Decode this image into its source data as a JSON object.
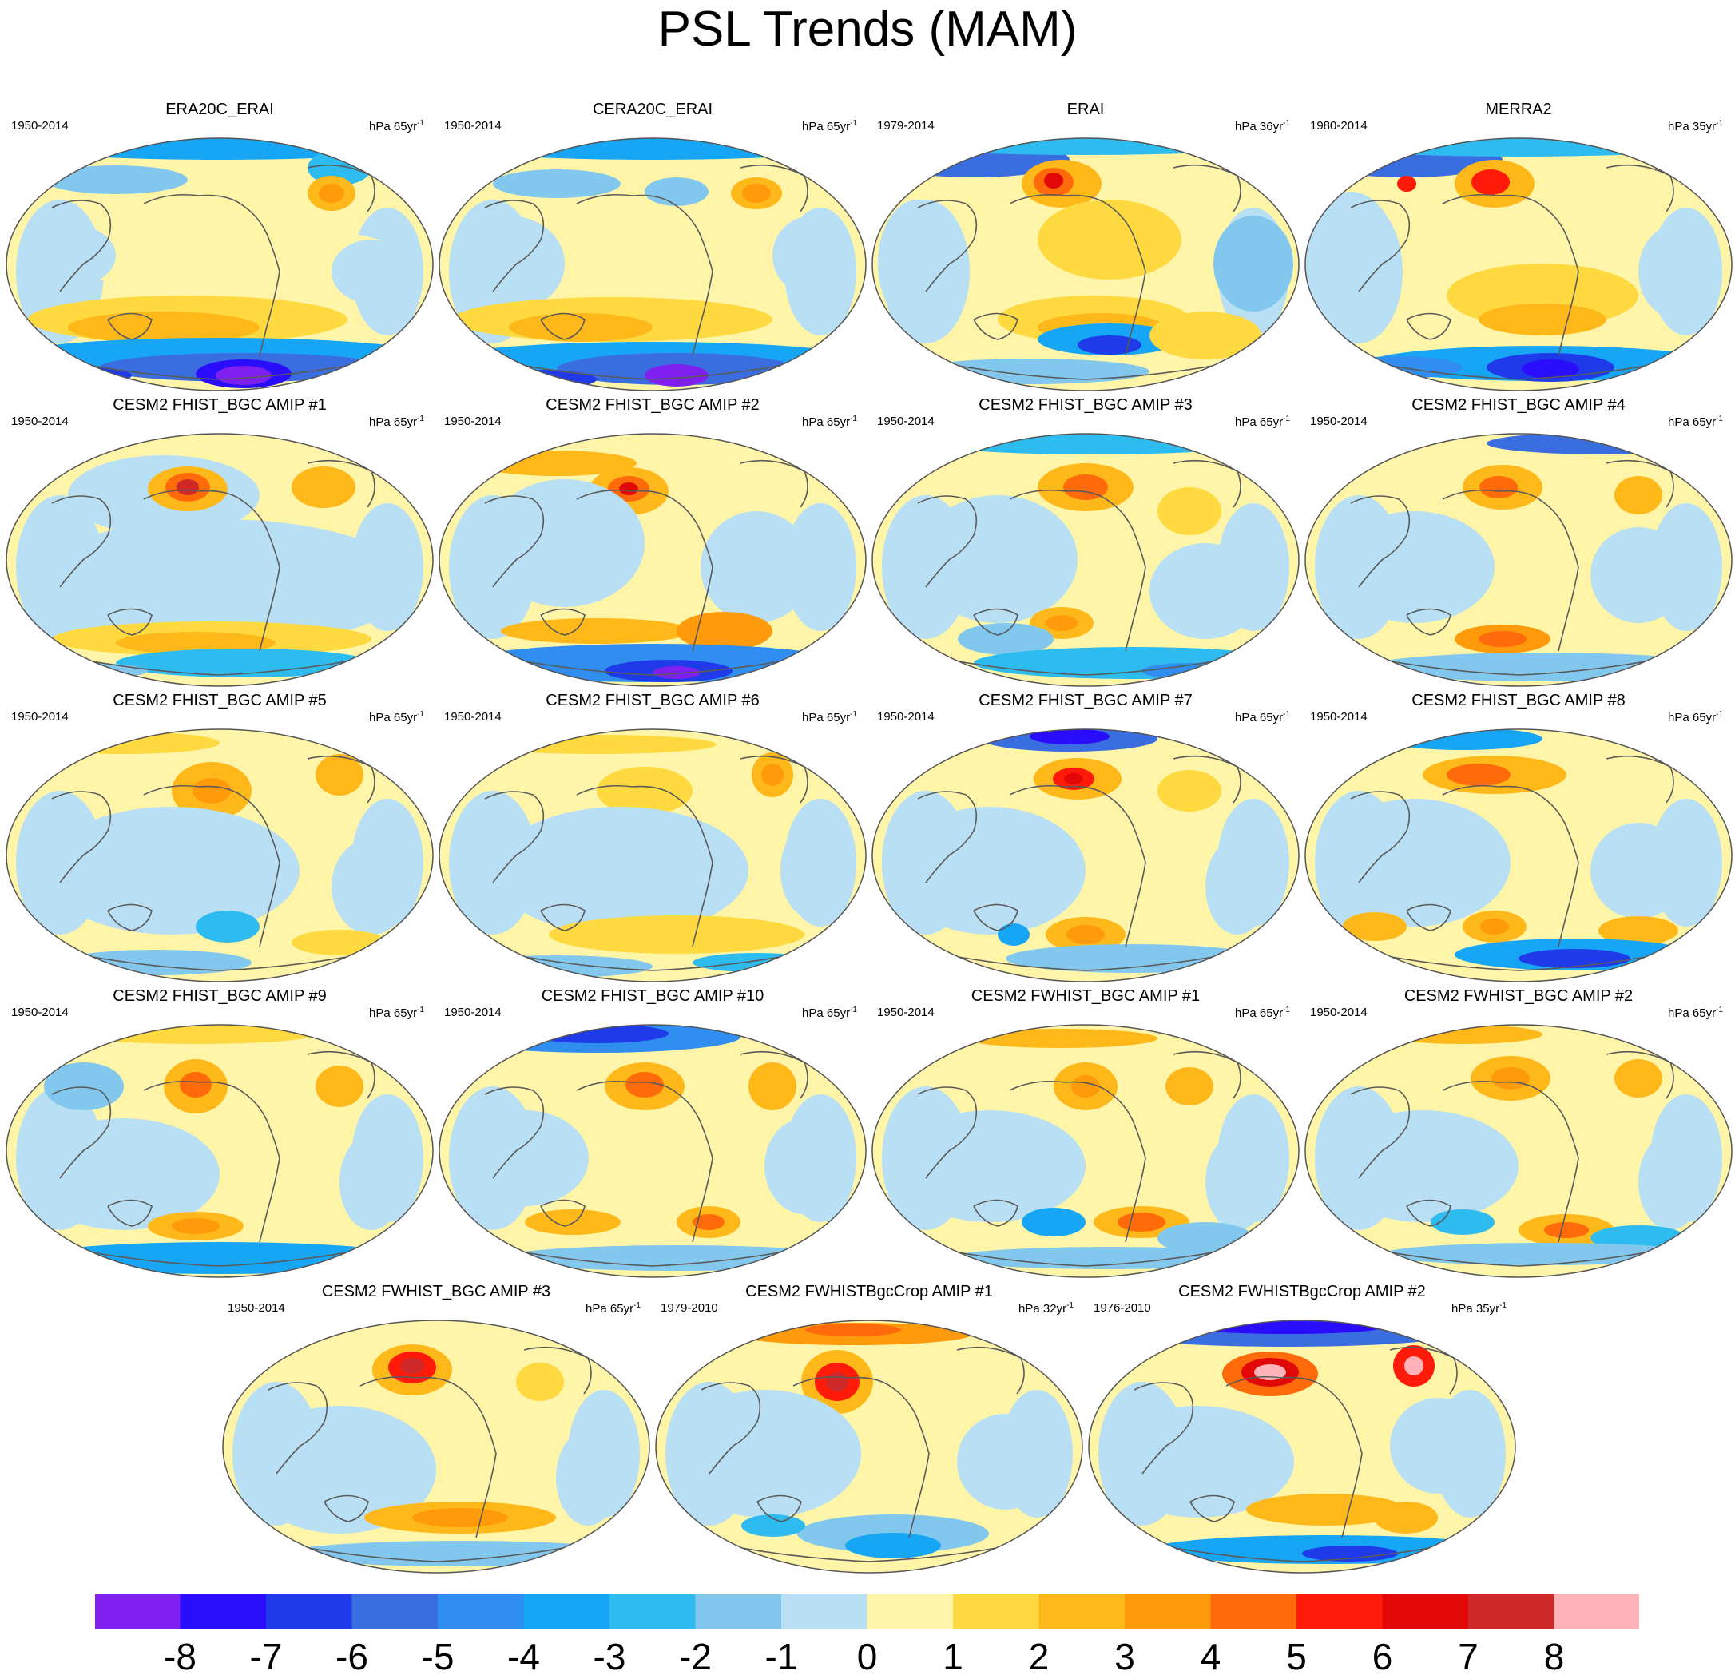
{
  "title": "PSL Trends (MAM)",
  "panels": [
    {
      "title": "ERA20C_ERAI",
      "period": "1950-2014",
      "units": "hPa 65yr",
      "sup": "-1",
      "pattern": "era20c"
    },
    {
      "title": "CERA20C_ERAI",
      "period": "1950-2014",
      "units": "hPa 65yr",
      "sup": "-1",
      "pattern": "cera20c"
    },
    {
      "title": "ERAI",
      "period": "1979-2014",
      "units": "hPa 36yr",
      "sup": "-1",
      "pattern": "erai"
    },
    {
      "title": "MERRA2",
      "period": "1980-2014",
      "units": "hPa 35yr",
      "sup": "-1",
      "pattern": "merra2"
    },
    {
      "title": "CESM2 FHIST_BGC AMIP #1",
      "period": "1950-2014",
      "units": "hPa 65yr",
      "sup": "-1",
      "pattern": "f1"
    },
    {
      "title": "CESM2 FHIST_BGC AMIP #2",
      "period": "1950-2014",
      "units": "hPa 65yr",
      "sup": "-1",
      "pattern": "f2"
    },
    {
      "title": "CESM2 FHIST_BGC AMIP #3",
      "period": "1950-2014",
      "units": "hPa 65yr",
      "sup": "-1",
      "pattern": "f3"
    },
    {
      "title": "CESM2 FHIST_BGC AMIP #4",
      "period": "1950-2014",
      "units": "hPa 65yr",
      "sup": "-1",
      "pattern": "f4"
    },
    {
      "title": "CESM2 FHIST_BGC AMIP #5",
      "period": "1950-2014",
      "units": "hPa 65yr",
      "sup": "-1",
      "pattern": "f5"
    },
    {
      "title": "CESM2 FHIST_BGC AMIP #6",
      "period": "1950-2014",
      "units": "hPa 65yr",
      "sup": "-1",
      "pattern": "f6"
    },
    {
      "title": "CESM2 FHIST_BGC AMIP #7",
      "period": "1950-2014",
      "units": "hPa 65yr",
      "sup": "-1",
      "pattern": "f7"
    },
    {
      "title": "CESM2 FHIST_BGC AMIP #8",
      "period": "1950-2014",
      "units": "hPa 65yr",
      "sup": "-1",
      "pattern": "f8"
    },
    {
      "title": "CESM2 FHIST_BGC AMIP #9",
      "period": "1950-2014",
      "units": "hPa 65yr",
      "sup": "-1",
      "pattern": "f9"
    },
    {
      "title": "CESM2 FHIST_BGC AMIP #10",
      "period": "1950-2014",
      "units": "hPa 65yr",
      "sup": "-1",
      "pattern": "f10"
    },
    {
      "title": "CESM2 FWHIST_BGC AMIP #1",
      "period": "1950-2014",
      "units": "hPa 65yr",
      "sup": "-1",
      "pattern": "fw1"
    },
    {
      "title": "CESM2 FWHIST_BGC AMIP #2",
      "period": "1950-2014",
      "units": "hPa 65yr",
      "sup": "-1",
      "pattern": "fw2"
    },
    {
      "title": "CESM2 FWHIST_BGC AMIP #3",
      "period": "1950-2014",
      "units": "hPa 65yr",
      "sup": "-1",
      "pattern": "fw3"
    },
    {
      "title": "CESM2 FWHISTBgcCrop AMIP #1",
      "period": "1979-2010",
      "units": "hPa 32yr",
      "sup": "-1",
      "pattern": "crop1"
    },
    {
      "title": "CESM2 FWHISTBgcCrop AMIP #2",
      "period": "1976-2010",
      "units": "hPa 35yr",
      "sup": "-1",
      "pattern": "crop2"
    }
  ],
  "colorbar": {
    "colors": [
      "#7f1ff0",
      "#2a0dfc",
      "#1f3ae8",
      "#3a6de0",
      "#2f8ef0",
      "#17a6f5",
      "#2ebcf0",
      "#82c8ee",
      "#b8dff3",
      "#fff5a8",
      "#ffd940",
      "#ffb81a",
      "#ff9a0a",
      "#ff6a0a",
      "#ff1a0a",
      "#e30808",
      "#cf2828",
      "#ffb3b8"
    ],
    "tick_labels": [
      "-8",
      "-7",
      "-6",
      "-5",
      "-4",
      "-3",
      "-2",
      "-1",
      "0",
      "1",
      "2",
      "3",
      "4",
      "5",
      "6",
      "7",
      "8"
    ]
  }
}
